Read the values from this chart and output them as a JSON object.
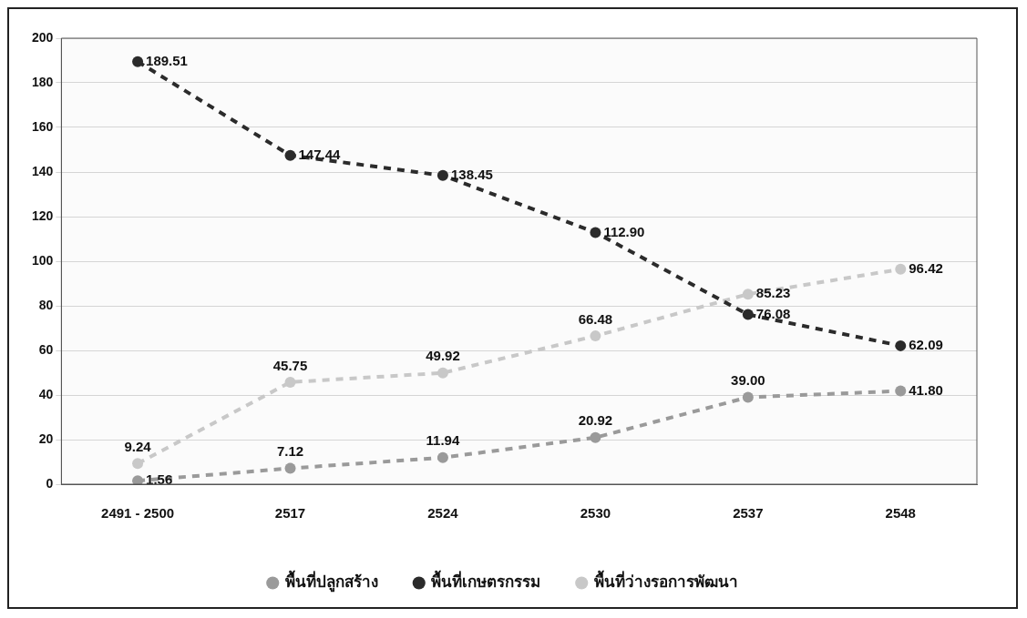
{
  "chart_data": {
    "type": "line",
    "categories": [
      "2491 - 2500",
      "2517",
      "2524",
      "2530",
      "2537",
      "2548"
    ],
    "series": [
      {
        "name": "พื้นที่ปลูกสร้าง",
        "color": "#9a9a9a",
        "values": [
          1.56,
          7.12,
          11.94,
          20.92,
          39.0,
          41.8
        ]
      },
      {
        "name": "พื้นที่เกษตรกรรม",
        "color": "#2b2b2b",
        "values": [
          189.51,
          147.44,
          138.45,
          112.9,
          76.08,
          62.09
        ]
      },
      {
        "name": "พื้นที่ว่างรอการพัฒนา",
        "color": "#c8c8c8",
        "values": [
          9.24,
          45.75,
          49.92,
          66.48,
          85.23,
          96.42
        ]
      }
    ],
    "value_labels": [
      [
        "1.56",
        "7.12",
        "11.94",
        "20.92",
        "39.00",
        "41.80"
      ],
      [
        "189.51",
        "147.44",
        "138.45",
        "112.90",
        "76.08",
        "62.09"
      ],
      [
        "9.24",
        "45.75",
        "49.92",
        "66.48",
        "85.23",
        "96.42"
      ]
    ],
    "ylim": [
      0,
      200
    ],
    "yticks": [
      0,
      20,
      40,
      60,
      80,
      100,
      120,
      140,
      160,
      180,
      200
    ],
    "grid": "y",
    "legend": "bottom",
    "marker": "circle",
    "line_style": "dashed"
  }
}
